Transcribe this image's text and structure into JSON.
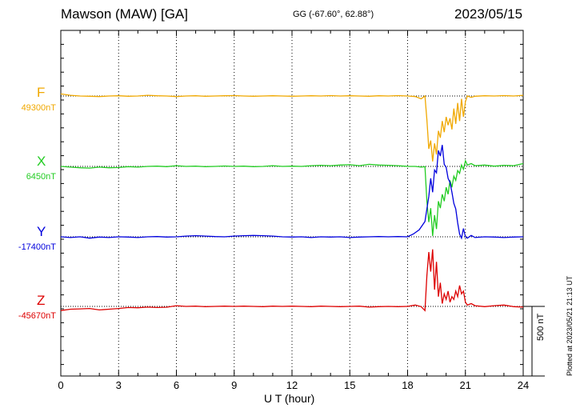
{
  "header": {
    "station": "Mawson (MAW)  [GA]",
    "coords": "GG (-67.60°,  62.88°)",
    "date": "2023/05/15"
  },
  "scale_label": "500 nT",
  "plotted_note": "Plotted at 2023/05/21 21:13 UT",
  "chart_data": {
    "type": "line",
    "xlabel": "U T (hour)",
    "xlim": [
      0,
      24
    ],
    "xticks": [
      "0",
      "3",
      "6",
      "9",
      "12",
      "15",
      "18",
      "21",
      "24"
    ],
    "scale_bar_nT": 500,
    "grid": true,
    "series": [
      {
        "name": "F",
        "baseline_label": "49300nT",
        "baseline_nT": 49300,
        "color": "#f0a800",
        "x": [
          0,
          0.5,
          1,
          1.5,
          2,
          2.5,
          3,
          3.5,
          4,
          4.5,
          5,
          5.5,
          6,
          6.5,
          7,
          7.5,
          8,
          8.5,
          9,
          9.5,
          10,
          10.5,
          11,
          11.5,
          12,
          12.5,
          13,
          13.5,
          14,
          14.5,
          15,
          15.5,
          16,
          16.5,
          17,
          17.5,
          18,
          18.4,
          18.7,
          18.9,
          19.0,
          19.1,
          19.2,
          19.3,
          19.4,
          19.5,
          19.6,
          19.7,
          19.8,
          19.9,
          20.0,
          20.1,
          20.2,
          20.3,
          20.4,
          20.5,
          20.6,
          20.7,
          20.8,
          20.9,
          21.0,
          21.1,
          21.3,
          21.5,
          22,
          22.5,
          23,
          23.5,
          24
        ],
        "y": [
          49315,
          49305,
          49300,
          49298,
          49296,
          49300,
          49302,
          49298,
          49300,
          49305,
          49302,
          49300,
          49296,
          49300,
          49302,
          49298,
          49300,
          49302,
          49303,
          49300,
          49298,
          49300,
          49302,
          49300,
          49298,
          49300,
          49302,
          49300,
          49303,
          49300,
          49302,
          49300,
          49298,
          49302,
          49300,
          49303,
          49300,
          49296,
          49280,
          49300,
          49130,
          48920,
          48980,
          48830,
          48960,
          48880,
          49050,
          49000,
          49120,
          49040,
          49150,
          49090,
          49140,
          49060,
          49210,
          49100,
          49250,
          49120,
          49280,
          49150,
          49260,
          49300,
          49290,
          49298,
          49302,
          49300,
          49303,
          49300,
          49305
        ]
      },
      {
        "name": "X",
        "baseline_label": "6450nT",
        "baseline_nT": 6450,
        "color": "#22cc22",
        "x": [
          0,
          0.5,
          1,
          1.5,
          2,
          2.5,
          3,
          3.5,
          4,
          4.5,
          5,
          5.5,
          6,
          6.5,
          7,
          7.5,
          8,
          8.5,
          9,
          9.5,
          10,
          10.5,
          11,
          11.5,
          12,
          12.5,
          13,
          13.5,
          14,
          14.5,
          15,
          15.5,
          16,
          16.5,
          17,
          17.5,
          18,
          18.4,
          18.7,
          18.9,
          19.0,
          19.1,
          19.2,
          19.3,
          19.4,
          19.5,
          19.6,
          19.7,
          19.8,
          19.9,
          20.0,
          20.1,
          20.2,
          20.3,
          20.4,
          20.5,
          20.6,
          20.7,
          20.8,
          20.9,
          21.0,
          21.1,
          21.3,
          21.5,
          22,
          22.5,
          23,
          23.5,
          24
        ],
        "y": [
          6450,
          6445,
          6440,
          6438,
          6445,
          6440,
          6442,
          6448,
          6445,
          6450,
          6452,
          6448,
          6455,
          6450,
          6452,
          6448,
          6450,
          6453,
          6450,
          6452,
          6448,
          6450,
          6455,
          6450,
          6452,
          6450,
          6455,
          6458,
          6455,
          6460,
          6462,
          6455,
          6465,
          6460,
          6458,
          6455,
          6450,
          6450,
          6445,
          6448,
          6200,
          6050,
          6150,
          5950,
          6100,
          6000,
          6200,
          6150,
          6250,
          6200,
          6300,
          6250,
          6350,
          6300,
          6380,
          6350,
          6420,
          6400,
          6460,
          6430,
          6490,
          6460,
          6470,
          6455,
          6460,
          6452,
          6458,
          6455,
          6470
        ]
      },
      {
        "name": "Y",
        "baseline_label": "-17400nT",
        "baseline_nT": -17400,
        "color": "#0000dd",
        "x": [
          0,
          0.5,
          1,
          1.5,
          2,
          2.5,
          3,
          3.5,
          4,
          4.5,
          5,
          5.5,
          6,
          6.5,
          7,
          7.5,
          8,
          8.5,
          9,
          9.5,
          10,
          10.5,
          11,
          11.5,
          12,
          12.5,
          13,
          13.5,
          14,
          14.5,
          15,
          15.5,
          16,
          16.5,
          17,
          17.5,
          18,
          18.3,
          18.6,
          18.9,
          19.0,
          19.1,
          19.2,
          19.3,
          19.4,
          19.5,
          19.6,
          19.7,
          19.8,
          19.9,
          20.0,
          20.1,
          20.2,
          20.3,
          20.4,
          20.5,
          20.6,
          20.7,
          20.8,
          20.9,
          21.0,
          21.1,
          21.3,
          21.5,
          22,
          22.5,
          23,
          23.5,
          24
        ],
        "y": [
          -17400,
          -17405,
          -17400,
          -17410,
          -17402,
          -17405,
          -17400,
          -17402,
          -17405,
          -17400,
          -17398,
          -17402,
          -17400,
          -17395,
          -17392,
          -17395,
          -17398,
          -17400,
          -17395,
          -17392,
          -17390,
          -17392,
          -17395,
          -17400,
          -17402,
          -17400,
          -17405,
          -17400,
          -17402,
          -17400,
          -17405,
          -17402,
          -17400,
          -17398,
          -17400,
          -17398,
          -17400,
          -17380,
          -17350,
          -17290,
          -17200,
          -17110,
          -16980,
          -17080,
          -16920,
          -16940,
          -16780,
          -16820,
          -16740,
          -16880,
          -16900,
          -16980,
          -17010,
          -17080,
          -17160,
          -17200,
          -17300,
          -17380,
          -17410,
          -17340,
          -17400,
          -17410,
          -17390,
          -17405,
          -17400,
          -17402,
          -17405,
          -17402,
          -17400
        ]
      },
      {
        "name": "Z",
        "baseline_label": "-45670nT",
        "baseline_nT": -45670,
        "color": "#dd0000",
        "x": [
          0,
          0.5,
          1,
          1.5,
          2,
          2.5,
          3,
          3.5,
          4,
          4.5,
          5,
          5.5,
          6,
          6.5,
          7,
          7.5,
          8,
          8.5,
          9,
          9.5,
          10,
          10.5,
          11,
          11.5,
          12,
          12.5,
          13,
          13.5,
          14,
          14.5,
          15,
          15.5,
          16,
          16.5,
          17,
          17.5,
          18,
          18.4,
          18.7,
          18.9,
          19.0,
          19.1,
          19.2,
          19.3,
          19.4,
          19.5,
          19.6,
          19.7,
          19.8,
          19.9,
          20.0,
          20.1,
          20.2,
          20.3,
          20.4,
          20.5,
          20.6,
          20.7,
          20.8,
          20.9,
          21.0,
          21.1,
          21.3,
          21.5,
          22,
          22.5,
          23,
          23.5,
          24
        ],
        "y": [
          -45700,
          -45690,
          -45688,
          -45685,
          -45695,
          -45690,
          -45685,
          -45678,
          -45680,
          -45675,
          -45678,
          -45676,
          -45665,
          -45670,
          -45668,
          -45672,
          -45670,
          -45668,
          -45670,
          -45668,
          -45670,
          -45672,
          -45668,
          -45670,
          -45668,
          -45670,
          -45672,
          -45668,
          -45670,
          -45672,
          -45670,
          -45668,
          -45675,
          -45672,
          -45670,
          -45672,
          -45670,
          -45660,
          -45672,
          -45700,
          -45450,
          -45280,
          -45420,
          -45260,
          -45550,
          -45350,
          -45600,
          -45500,
          -45650,
          -45580,
          -45620,
          -45560,
          -45640,
          -45600,
          -45620,
          -45560,
          -45600,
          -45520,
          -45580,
          -45560,
          -45640,
          -45660,
          -45650,
          -45665,
          -45672,
          -45665,
          -45660,
          -45672,
          -45675
        ]
      }
    ]
  }
}
